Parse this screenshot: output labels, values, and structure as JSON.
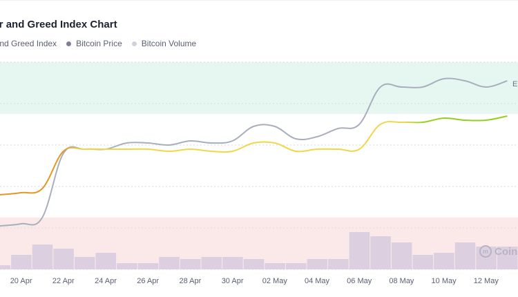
{
  "title": "ear and Greed Index Chart",
  "legend": [
    {
      "label": "ear and Greed Index",
      "color": "#e8a23a"
    },
    {
      "label": "Bitcoin Price",
      "color": "#7c8091"
    },
    {
      "label": "Bitcoin Volume",
      "color": "#cfd2da"
    }
  ],
  "watermark": {
    "text": "Coin",
    "icon": "coinmarketcap-logo-icon"
  },
  "colors": {
    "index_low": "#e39722",
    "index_mid": "#f0d64a",
    "index_high": "#8fd11c",
    "price": "#a9aebd",
    "volume_bar": "#dcd0e0",
    "greed_band": "#e6f7f1",
    "fear_band": "#fbe9e9"
  },
  "chart_data": {
    "type": "line",
    "x_ticks": [
      "20 Apr",
      "22 Apr",
      "24 Apr",
      "26 Apr",
      "28 Apr",
      "30 Apr",
      "02 May",
      "04 May",
      "06 May",
      "08 May",
      "10 May",
      "12 May"
    ],
    "x": [
      "19 Apr",
      "20 Apr",
      "21 Apr",
      "22 Apr",
      "23 Apr",
      "24 Apr",
      "25 Apr",
      "26 Apr",
      "27 Apr",
      "28 Apr",
      "29 Apr",
      "30 Apr",
      "01 May",
      "02 May",
      "03 May",
      "04 May",
      "05 May",
      "06 May",
      "07 May",
      "08 May",
      "09 May",
      "10 May",
      "11 May",
      "12 May",
      "13 May"
    ],
    "ylim": [
      0,
      100
    ],
    "bands": [
      {
        "name": "greed",
        "from": 75,
        "to": 100
      },
      {
        "name": "fear",
        "from": 0,
        "to": 25
      }
    ],
    "annotation": "E",
    "series": [
      {
        "name": "ear and Greed Index",
        "values": [
          36,
          37,
          39,
          57,
          58,
          58,
          58,
          58,
          57,
          58,
          57,
          57,
          61,
          61,
          57,
          58,
          58,
          58,
          70,
          71,
          71,
          73,
          72,
          72,
          74
        ]
      },
      {
        "name": "Bitcoin Price",
        "values": [
          21,
          22,
          25,
          56,
          58,
          58,
          61,
          61,
          60,
          62,
          61,
          62,
          69,
          69,
          63,
          64,
          68,
          70,
          88,
          88,
          88,
          92,
          91,
          88,
          91
        ]
      },
      {
        "name": "Bitcoin Volume",
        "values": [
          2,
          7,
          12,
          10,
          6,
          8,
          3,
          3,
          6,
          5,
          6,
          6,
          5,
          3,
          3,
          5,
          5,
          18,
          16,
          13,
          7,
          8,
          13,
          11,
          11
        ]
      }
    ]
  }
}
